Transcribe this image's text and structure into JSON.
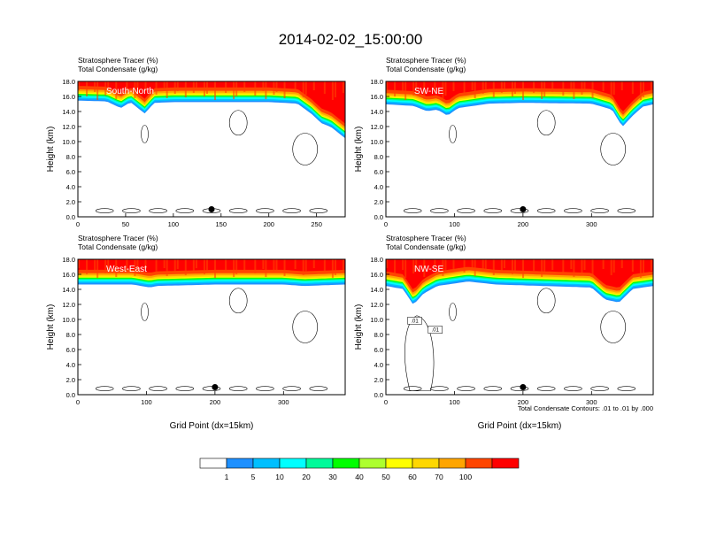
{
  "title": "2014-02-02_15:00:00",
  "panel_header": [
    "Stratosphere Tracer   (%)",
    "Total Condensate   (g/kg)"
  ],
  "colors": {
    "levels": [
      "#ffffff",
      "#1e90ff",
      "#00bfff",
      "#00ffff",
      "#00fa9a",
      "#00ff00",
      "#adff2f",
      "#ffff00",
      "#ffd700",
      "#ffa500",
      "#ff4500",
      "#ff0000"
    ]
  },
  "contour_note": "Total Condensate Contours: .01 to .01 by .000",
  "colorbar": {
    "labels": [
      "1",
      "5",
      "10",
      "20",
      "30",
      "40",
      "50",
      "60",
      "70",
      "100"
    ]
  },
  "chart_data": [
    {
      "type": "heatmap",
      "label": "South-North",
      "ylabel": "Height (km)",
      "xlabel": "",
      "xlim": [
        0,
        280
      ],
      "ylim": [
        0,
        18
      ],
      "xticks": [
        0,
        50,
        100,
        150,
        200,
        250
      ],
      "yticks": [
        "0.0",
        "2.0",
        "4.0",
        "6.0",
        "8.0",
        "10.0",
        "12.0",
        "14.0",
        "16.0",
        "18.0"
      ],
      "tropopause_km": [
        [
          0,
          16.0
        ],
        [
          30,
          15.9
        ],
        [
          45,
          15.0
        ],
        [
          55,
          15.8
        ],
        [
          70,
          14.3
        ],
        [
          80,
          15.7
        ],
        [
          100,
          15.8
        ],
        [
          150,
          15.8
        ],
        [
          200,
          15.8
        ],
        [
          230,
          15.6
        ],
        [
          245,
          14.2
        ],
        [
          255,
          13.0
        ],
        [
          265,
          12.5
        ],
        [
          280,
          11.0
        ]
      ],
      "marker": {
        "x": 140,
        "y": 1.0
      }
    },
    {
      "type": "heatmap",
      "label": "SW-NE",
      "ylabel": "Height (km)",
      "xlabel": "",
      "xlim": [
        0,
        390
      ],
      "ylim": [
        0,
        18
      ],
      "xticks": [
        0,
        100,
        200,
        300
      ],
      "yticks": [
        "0.0",
        "2.0",
        "4.0",
        "6.0",
        "8.0",
        "10.0",
        "12.0",
        "14.0",
        "16.0",
        "18.0"
      ],
      "tropopause_km": [
        [
          0,
          15.5
        ],
        [
          40,
          15.3
        ],
        [
          60,
          14.6
        ],
        [
          75,
          14.8
        ],
        [
          90,
          14.0
        ],
        [
          105,
          15.0
        ],
        [
          150,
          15.6
        ],
        [
          200,
          15.7
        ],
        [
          300,
          15.6
        ],
        [
          330,
          14.8
        ],
        [
          345,
          12.5
        ],
        [
          360,
          14.0
        ],
        [
          375,
          15.2
        ],
        [
          390,
          15.5
        ]
      ],
      "marker": {
        "x": 200,
        "y": 1.0
      }
    },
    {
      "type": "heatmap",
      "label": "West-East",
      "ylabel": "Height (km)",
      "xlabel": "Grid Point (dx=15km)",
      "xlim": [
        0,
        390
      ],
      "ylim": [
        0,
        18
      ],
      "xticks": [
        0,
        100,
        200,
        300
      ],
      "yticks": [
        "0.0",
        "2.0",
        "4.0",
        "6.0",
        "8.0",
        "10.0",
        "12.0",
        "14.0",
        "16.0",
        "18.0"
      ],
      "tropopause_km": [
        [
          0,
          15.2
        ],
        [
          80,
          15.2
        ],
        [
          105,
          14.8
        ],
        [
          115,
          15.0
        ],
        [
          200,
          15.2
        ],
        [
          300,
          15.2
        ],
        [
          330,
          15.0
        ],
        [
          390,
          15.2
        ]
      ],
      "marker": {
        "x": 200,
        "y": 1.0
      }
    },
    {
      "type": "heatmap",
      "label": "NW-SE",
      "ylabel": "Height (km)",
      "xlabel": "Grid Point (dx=15km)",
      "xlim": [
        0,
        390
      ],
      "ylim": [
        0,
        18
      ],
      "xticks": [
        0,
        100,
        200,
        300
      ],
      "yticks": [
        "0.0",
        "2.0",
        "4.0",
        "6.0",
        "8.0",
        "10.0",
        "12.0",
        "14.0",
        "16.0",
        "18.0"
      ],
      "tropopause_km": [
        [
          0,
          15.0
        ],
        [
          25,
          14.6
        ],
        [
          40,
          12.5
        ],
        [
          55,
          14.0
        ],
        [
          75,
          15.0
        ],
        [
          120,
          15.6
        ],
        [
          160,
          15.2
        ],
        [
          230,
          15.0
        ],
        [
          300,
          14.8
        ],
        [
          320,
          13.2
        ],
        [
          340,
          12.8
        ],
        [
          360,
          14.6
        ],
        [
          390,
          15.0
        ]
      ],
      "marker": {
        "x": 200,
        "y": 1.0
      },
      "contour_labels": [
        ".01",
        ".01"
      ]
    }
  ]
}
